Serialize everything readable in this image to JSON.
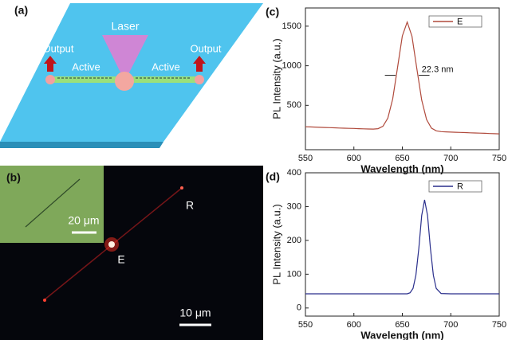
{
  "panels": {
    "a": {
      "label": "(a)",
      "laser": "Laser",
      "active_left": "Active",
      "active_right": "Active",
      "output_left": "Output",
      "output_right": "Output"
    },
    "b": {
      "label": "(b)",
      "inset_scale": "20 μm",
      "end_label": "R",
      "excite_label": "E",
      "scale": "10 μm"
    }
  },
  "chart_data": [
    {
      "type": "line",
      "panel_label": "(c)",
      "xlabel": "Wavelength (nm)",
      "ylabel": "PL Intensity (a.u.)",
      "annotation": "22.3 nm",
      "legend": "upper right",
      "x": [
        550,
        555,
        560,
        565,
        570,
        575,
        580,
        585,
        590,
        595,
        600,
        605,
        610,
        615,
        620,
        625,
        630,
        635,
        640,
        645,
        650,
        655,
        660,
        665,
        670,
        675,
        680,
        685,
        690,
        695,
        700,
        705,
        710,
        715,
        720,
        725,
        730,
        735,
        740,
        745,
        750
      ],
      "series": [
        {
          "name": "E",
          "color": "#b04a3c",
          "values": [
            230,
            228,
            226,
            223,
            221,
            219,
            217,
            214,
            212,
            210,
            208,
            205,
            203,
            201,
            200,
            205,
            236,
            338,
            580,
            972,
            1377,
            1552,
            1372,
            963,
            567,
            320,
            213,
            178,
            168,
            165,
            162,
            160,
            158,
            156,
            153,
            151,
            149,
            147,
            144,
            142,
            140
          ]
        }
      ],
      "xlim": [
        550,
        750
      ],
      "xticks": [
        550,
        600,
        650,
        700,
        750
      ],
      "ylim": [
        -60,
        1730
      ],
      "yticks": [
        500,
        1000,
        1500
      ]
    },
    {
      "type": "line",
      "panel_label": "(d)",
      "xlabel": "Wavelength (nm)",
      "ylabel": "PL Intensity (a.u.)",
      "legend": "upper right",
      "x": [
        550,
        560,
        570,
        580,
        590,
        600,
        610,
        620,
        630,
        640,
        650,
        655,
        658,
        661,
        664,
        667,
        670,
        673,
        676,
        679,
        682,
        685,
        690,
        700,
        710,
        720,
        730,
        740,
        750
      ],
      "series": [
        {
          "name": "R",
          "color": "#2a2f8c",
          "values": [
            42,
            42,
            42,
            42,
            42,
            42,
            42,
            42,
            42,
            42,
            42,
            42,
            45,
            58,
            97,
            177,
            274,
            320,
            274,
            177,
            97,
            58,
            43,
            42,
            42,
            42,
            42,
            42,
            42
          ]
        }
      ],
      "xlim": [
        550,
        750
      ],
      "xticks": [
        550,
        600,
        650,
        700,
        750
      ],
      "ylim": [
        -24,
        400
      ],
      "yticks": [
        0,
        100,
        200,
        300,
        400
      ]
    }
  ]
}
